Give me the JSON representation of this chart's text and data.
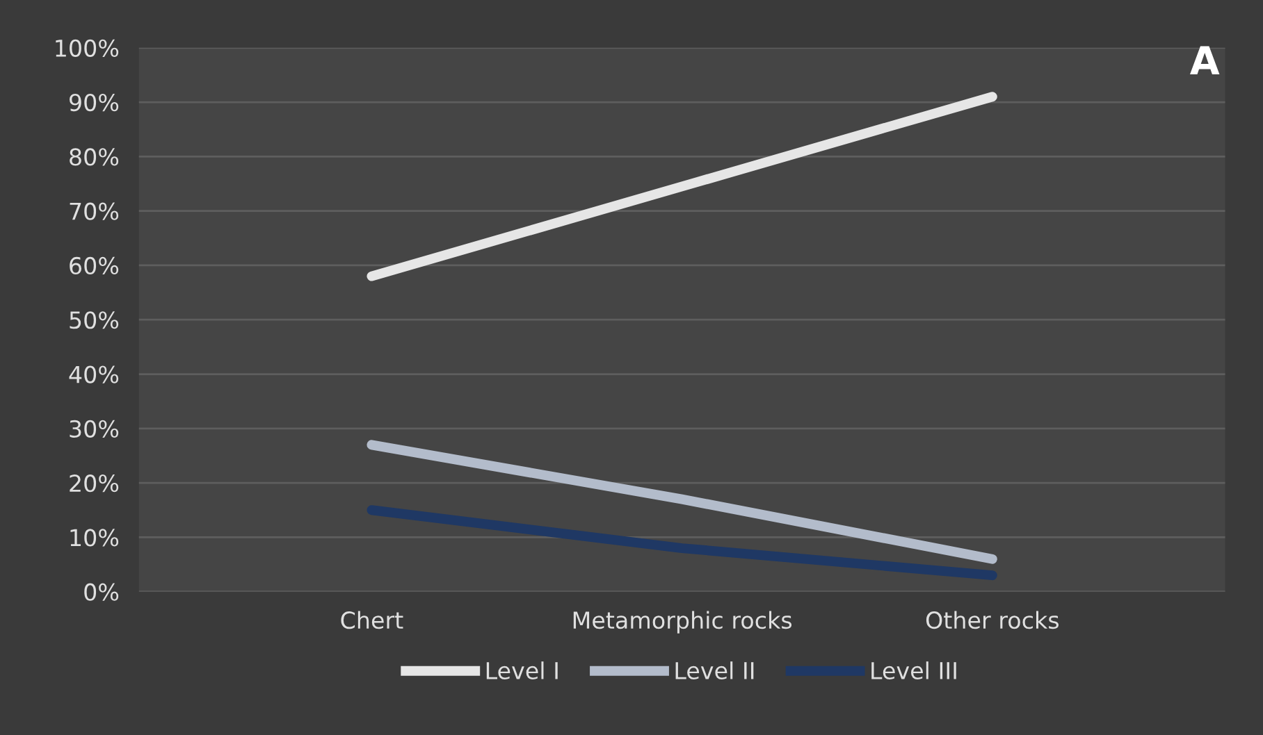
{
  "chart_data": {
    "type": "line",
    "title": "A",
    "categories": [
      "Chert",
      "Metamorphic rocks",
      "Other rocks"
    ],
    "series": [
      {
        "name": "Level I",
        "color": "#e6e6e6",
        "values": [
          58,
          74.5,
          91
        ]
      },
      {
        "name": "Level II",
        "color": "#b3bccb",
        "values": [
          27,
          17,
          6
        ]
      },
      {
        "name": "Level III",
        "color": "#1f3864",
        "values": [
          15,
          8,
          3
        ]
      }
    ],
    "ylim": [
      0,
      100
    ],
    "yticks": [
      {
        "value": 0,
        "label": "0%"
      },
      {
        "value": 10,
        "label": "10%"
      },
      {
        "value": 20,
        "label": "20%"
      },
      {
        "value": 30,
        "label": "30%"
      },
      {
        "value": 40,
        "label": "40%"
      },
      {
        "value": 50,
        "label": "50%"
      },
      {
        "value": 60,
        "label": "60%"
      },
      {
        "value": 70,
        "label": "70%"
      },
      {
        "value": 80,
        "label": "80%"
      },
      {
        "value": 90,
        "label": "90%"
      },
      {
        "value": 100,
        "label": "100%"
      }
    ],
    "grid": "y",
    "legend": "bottom",
    "marker": "none",
    "line_style": "solid"
  }
}
